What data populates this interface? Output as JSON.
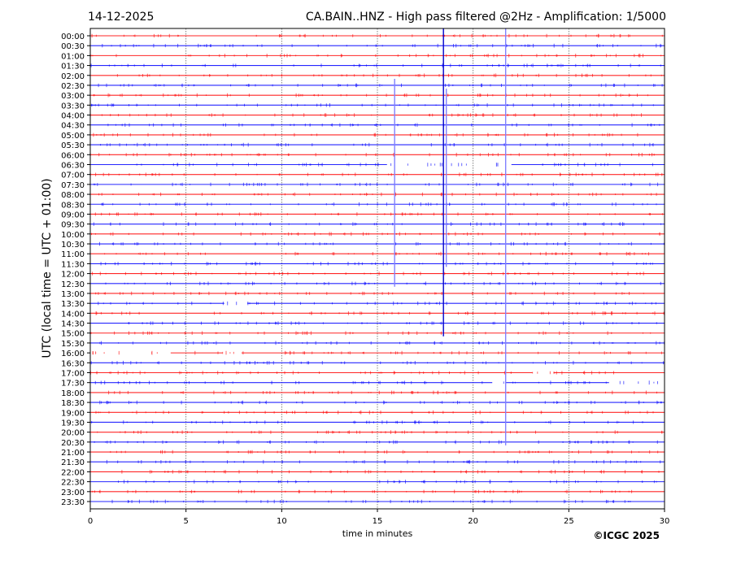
{
  "header": {
    "date": "14-12-2025",
    "title": "CA.BAIN..HNZ - High pass filtered @2Hz - Amplification: 1/5000"
  },
  "copyright": "©ICGC 2025",
  "chart_data": {
    "type": "line",
    "title": "CA.BAIN..HNZ - High pass filtered @2Hz - Amplification: 1/5000",
    "xlabel": "time in minutes",
    "ylabel": "UTC (local time = UTC + 01:00)",
    "xlim": [
      0,
      30
    ],
    "xticks": [
      "0",
      "5",
      "10",
      "15",
      "20",
      "25",
      "30"
    ],
    "grid": "vertical dotted at every 5 minutes",
    "rows": [
      "00:00",
      "00:30",
      "01:00",
      "01:30",
      "02:00",
      "02:30",
      "03:00",
      "03:30",
      "04:00",
      "04:30",
      "05:00",
      "05:30",
      "06:00",
      "06:30",
      "07:00",
      "07:30",
      "08:00",
      "08:30",
      "09:00",
      "09:30",
      "10:00",
      "10:30",
      "11:00",
      "11:30",
      "12:00",
      "12:30",
      "13:00",
      "13:30",
      "14:00",
      "14:30",
      "15:00",
      "15:30",
      "16:00",
      "16:30",
      "17:00",
      "17:30",
      "18:00",
      "18:30",
      "19:00",
      "19:30",
      "20:00",
      "20:30",
      "21:00",
      "21:30",
      "22:00",
      "22:30",
      "23:00",
      "23:30"
    ],
    "row_colors": [
      "#ff0000",
      "#0000ff"
    ],
    "spikes": [
      {
        "minute": 15.9,
        "from": "02:30",
        "to": "12:30",
        "color": "#8080ff"
      },
      {
        "minute": 18.45,
        "from": "00:00",
        "to": "15:00",
        "color": "#0000cc"
      },
      {
        "minute": 18.6,
        "from": "03:00",
        "to": "11:30",
        "color": "#8080ff"
      },
      {
        "minute": 21.7,
        "from": "00:00",
        "to": "20:30",
        "color": "#8080ff"
      }
    ],
    "gaps": [
      {
        "row": "06:30",
        "from": 15.5,
        "to": 22.0
      },
      {
        "row": "13:30",
        "from": 7.0,
        "to": 8.2
      },
      {
        "row": "16:00",
        "from": 0.0,
        "to": 4.2
      },
      {
        "row": "16:00",
        "from": 6.9,
        "to": 7.9
      },
      {
        "row": "17:00",
        "from": 23.1,
        "to": 24.2
      },
      {
        "row": "17:30",
        "from": 21.0,
        "to": 21.7
      },
      {
        "row": "17:30",
        "from": 27.1,
        "to": 30.0
      }
    ]
  }
}
